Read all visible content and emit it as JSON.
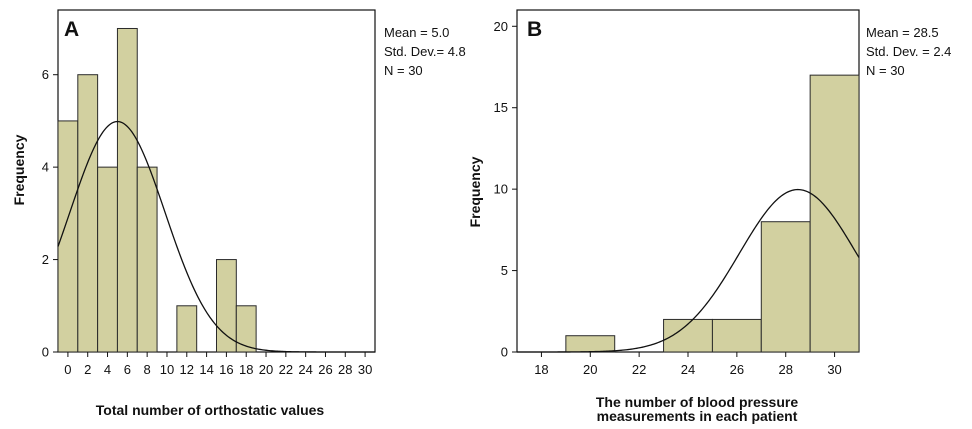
{
  "colors": {
    "bar_fill": "#d2d0a0",
    "bar_stroke": "#2a2a2a",
    "curve": "#111111",
    "axis": "#111111"
  },
  "chart_data": [
    {
      "type": "bar",
      "panel_label": "A",
      "xlabel": "Total number of orthostatic values",
      "ylabel": "Frequency",
      "xlim": [
        -1,
        31
      ],
      "ylim": [
        0,
        7.4
      ],
      "xticks": [
        0,
        2,
        4,
        6,
        8,
        10,
        12,
        14,
        16,
        18,
        20,
        22,
        24,
        26,
        28,
        30
      ],
      "yticks": [
        0,
        2,
        4,
        6
      ],
      "bin_width": 2,
      "bins": [
        {
          "start": -1,
          "end": 1,
          "count": 5
        },
        {
          "start": 1,
          "end": 3,
          "count": 6
        },
        {
          "start": 3,
          "end": 5,
          "count": 4
        },
        {
          "start": 5,
          "end": 7,
          "count": 7
        },
        {
          "start": 7,
          "end": 9,
          "count": 4
        },
        {
          "start": 11,
          "end": 13,
          "count": 1
        },
        {
          "start": 15,
          "end": 17,
          "count": 2
        },
        {
          "start": 17,
          "end": 19,
          "count": 1
        }
      ],
      "normal_curve": {
        "mean": 5.0,
        "sd": 4.8,
        "n": 30
      },
      "stats": [
        "Mean =  5.0",
        "Std. Dev.= 4.8",
        "N = 30"
      ]
    },
    {
      "type": "bar",
      "panel_label": "B",
      "xlabel": [
        "The number of blood pressure",
        "measurements in each patient"
      ],
      "ylabel": "Frequency",
      "xlim": [
        17,
        31
      ],
      "ylim": [
        0,
        21
      ],
      "xticks": [
        18,
        20,
        22,
        24,
        26,
        28,
        30
      ],
      "yticks": [
        0,
        5,
        10,
        15,
        20
      ],
      "bin_width": 2,
      "bins": [
        {
          "start": 19,
          "end": 21,
          "count": 1
        },
        {
          "start": 23,
          "end": 25,
          "count": 2
        },
        {
          "start": 25,
          "end": 27,
          "count": 2
        },
        {
          "start": 27,
          "end": 29,
          "count": 8
        },
        {
          "start": 29,
          "end": 31,
          "count": 17
        }
      ],
      "normal_curve": {
        "mean": 28.5,
        "sd": 2.4,
        "n": 30
      },
      "stats": [
        "Mean = 28.5",
        "Std. Dev. = 2.4",
        "N = 30"
      ]
    }
  ]
}
